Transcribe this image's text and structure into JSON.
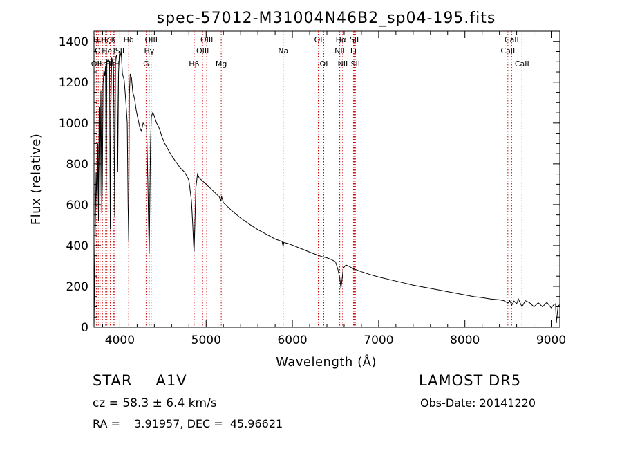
{
  "chart_data": {
    "type": "line",
    "title": "spec-57012-M31004N46B2_sp04-195.fits",
    "xlabel": "Wavelength (Å)",
    "ylabel": "Flux (relative)",
    "xlim": [
      3700,
      9100
    ],
    "ylim": [
      0,
      1450
    ],
    "x_ticks": [
      4000,
      5000,
      6000,
      7000,
      8000,
      9000
    ],
    "y_ticks": [
      0,
      200,
      400,
      600,
      800,
      1000,
      1200,
      1400
    ],
    "grid": false,
    "line_color": "#000000",
    "marker_color": "#cc0000",
    "series": [
      {
        "x": [
          3700,
          3712,
          3725,
          3735,
          3745,
          3752,
          3760,
          3770,
          3780,
          3790,
          3797,
          3805,
          3815,
          3825,
          3835,
          3842,
          3850,
          3860,
          3870,
          3880,
          3889,
          3895,
          3905,
          3915,
          3925,
          3933,
          3940,
          3950,
          3960,
          3968,
          3975,
          3985,
          3995,
          4005,
          4015,
          4030,
          4050,
          4070,
          4085,
          4095,
          4102,
          4110,
          4120,
          4135,
          4150,
          4170,
          4190,
          4210,
          4230,
          4250,
          4270,
          4290,
          4310,
          4325,
          4335,
          4340,
          4345,
          4355,
          4365,
          4380,
          4395,
          4410,
          4425,
          4440,
          4460,
          4490,
          4520,
          4560,
          4600,
          4650,
          4700,
          4750,
          4800,
          4830,
          4845,
          4855,
          4861,
          4868,
          4880,
          4900,
          4920,
          4950,
          5000,
          5050,
          5100,
          5150,
          5172,
          5180,
          5200,
          5300,
          5400,
          5500,
          5600,
          5700,
          5800,
          5880,
          5893,
          5900,
          5950,
          6000,
          6100,
          6200,
          6300,
          6350,
          6400,
          6450,
          6500,
          6530,
          6550,
          6563,
          6575,
          6590,
          6620,
          6650,
          6700,
          6800,
          6900,
          7000,
          7100,
          7200,
          7300,
          7400,
          7500,
          7600,
          7700,
          7800,
          7900,
          8000,
          8100,
          8200,
          8300,
          8400,
          8450,
          8498,
          8520,
          8542,
          8570,
          8600,
          8620,
          8662,
          8700,
          8750,
          8800,
          8850,
          8900,
          8950,
          9000,
          9030,
          9050,
          9060,
          9080,
          9100
        ],
        "y": [
          5,
          420,
          760,
          580,
          900,
          520,
          1080,
          640,
          1160,
          560,
          700,
          1190,
          1260,
          1230,
          1280,
          660,
          1310,
          1300,
          1310,
          1300,
          480,
          1040,
          1320,
          1300,
          1300,
          1000,
          540,
          1320,
          1330,
          1300,
          760,
          1250,
          1340,
          1330,
          1350,
          1240,
          1210,
          1100,
          1000,
          600,
          420,
          1140,
          1240,
          1220,
          1150,
          1120,
          1060,
          1020,
          980,
          960,
          1000,
          990,
          990,
          700,
          450,
          360,
          520,
          900,
          1030,
          1050,
          1040,
          1020,
          1000,
          990,
          970,
          930,
          900,
          870,
          840,
          810,
          780,
          760,
          720,
          620,
          500,
          400,
          370,
          480,
          680,
          750,
          730,
          720,
          700,
          680,
          660,
          640,
          620,
          640,
          610,
          570,
          535,
          505,
          478,
          455,
          432,
          420,
          395,
          415,
          410,
          402,
          385,
          368,
          352,
          345,
          340,
          332,
          320,
          280,
          240,
          190,
          230,
          290,
          305,
          300,
          288,
          272,
          258,
          246,
          236,
          226,
          216,
          206,
          198,
          190,
          182,
          174,
          166,
          158,
          150,
          145,
          138,
          134,
          130,
          118,
          130,
          108,
          128,
          115,
          138,
          100,
          130,
          120,
          100,
          120,
          100,
          122,
          95,
          110,
          115,
          20,
          105,
          110
        ]
      }
    ],
    "line_markers": [
      {
        "wavelength": 3727,
        "label": "OII",
        "row": 3
      },
      {
        "wavelength": 3750,
        "label": "Hθ",
        "row": 1
      },
      {
        "wavelength": 3770,
        "label": "OII",
        "row": 2
      },
      {
        "wavelength": 3798,
        "label": "Hη",
        "row": 3
      },
      {
        "wavelength": 3835,
        "label": "Hζ",
        "row": 1
      },
      {
        "wavelength": 3850,
        "label": "He",
        "row": 2
      },
      {
        "wavelength": 3889,
        "label": "Hε",
        "row": 3
      },
      {
        "wavelength": 3925,
        "label": "K",
        "row": 1
      },
      {
        "wavelength": 3934,
        "label": "I",
        "row": 2
      },
      {
        "wavelength": 3968,
        "label": "H",
        "row": 3
      },
      {
        "wavelength": 4000,
        "label": "SII",
        "row": 2
      },
      {
        "wavelength": 4102,
        "label": "Hδ",
        "row": 1
      },
      {
        "wavelength": 4304,
        "label": "G",
        "row": 3
      },
      {
        "wavelength": 4340,
        "label": "Hγ",
        "row": 2
      },
      {
        "wavelength": 4363,
        "label": "OIII",
        "row": 1
      },
      {
        "wavelength": 4861,
        "label": "Hβ",
        "row": 3
      },
      {
        "wavelength": 4959,
        "label": "OIII",
        "row": 2
      },
      {
        "wavelength": 5007,
        "label": "OIII",
        "row": 1
      },
      {
        "wavelength": 5175,
        "label": "Mg",
        "row": 3
      },
      {
        "wavelength": 5893,
        "label": "Na",
        "row": 2
      },
      {
        "wavelength": 6300,
        "label": "OI",
        "row": 1
      },
      {
        "wavelength": 6364,
        "label": "OI",
        "row": 3
      },
      {
        "wavelength": 6548,
        "label": "NII",
        "row": 2
      },
      {
        "wavelength": 6563,
        "label": "Hα",
        "row": 1
      },
      {
        "wavelength": 6583,
        "label": "NII",
        "row": 3
      },
      {
        "wavelength": 6708,
        "label": "Li",
        "row": 2
      },
      {
        "wavelength": 6717,
        "label": "SII",
        "row": 1
      },
      {
        "wavelength": 6731,
        "label": "SII",
        "row": 3
      },
      {
        "wavelength": 8498,
        "label": "CaII",
        "row": 2
      },
      {
        "wavelength": 8542,
        "label": "CaII",
        "row": 1
      },
      {
        "wavelength": 8662,
        "label": "CaII",
        "row": 3
      }
    ]
  },
  "info": {
    "class_label": "STAR",
    "subclass": "A1V",
    "survey": "LAMOST DR5",
    "cz": "cz = 58.3 ± 6.4 km/s",
    "obs_date": "Obs-Date: 20141220",
    "ra_dec": "RA =    3.91957, DEC =  45.96621"
  }
}
